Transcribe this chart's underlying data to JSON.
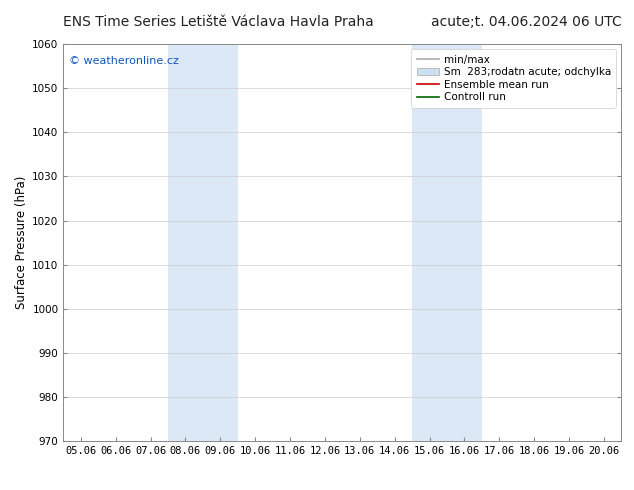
{
  "title_left": "ENS Time Series Letiště Václava Havla Praha",
  "title_right": "acute;t. 04.06.2024 06 UTC",
  "ylabel": "Surface Pressure (hPa)",
  "xtick_labels": [
    "05.06",
    "06.06",
    "07.06",
    "08.06",
    "09.06",
    "10.06",
    "11.06",
    "12.06",
    "13.06",
    "14.06",
    "15.06",
    "16.06",
    "17.06",
    "18.06",
    "19.06",
    "20.06"
  ],
  "ylim": [
    970,
    1060
  ],
  "ytick_step": 10,
  "background_color": "#ffffff",
  "plot_bg_color": "#ffffff",
  "shaded_regions": [
    {
      "xstart": 3,
      "xend": 5,
      "color": "#dce8f5"
    },
    {
      "xstart": 10,
      "xend": 12,
      "color": "#dce8f5"
    }
  ],
  "legend_entry_minmax": "min/max",
  "legend_entry_spread": "Sm  283;rodatn acute; odchylka",
  "legend_entry_ensemble": "Ensemble mean run",
  "legend_entry_control": "Controll run",
  "color_minmax": "#aaaaaa",
  "color_spread": "#cce0f0",
  "color_ensemble": "#cc0000",
  "color_control": "#006600",
  "watermark": "© weatheronline.cz",
  "watermark_color": "#1155bb",
  "title_fontsize": 10,
  "tick_fontsize": 7.5,
  "ylabel_fontsize": 8.5,
  "legend_fontsize": 7.5
}
